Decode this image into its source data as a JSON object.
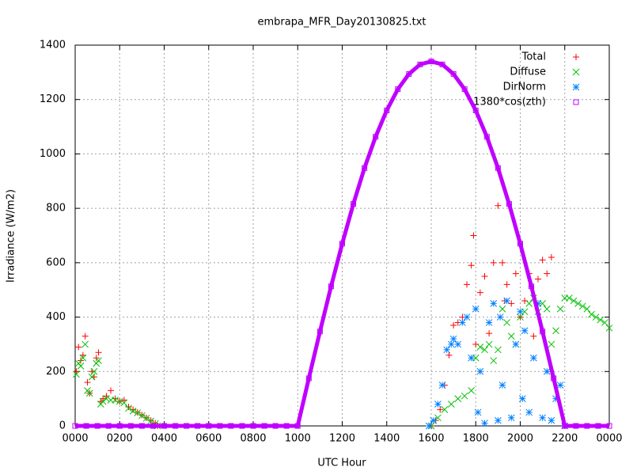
{
  "chart_data": {
    "type": "scatter",
    "title": "embrapa_MFR_Day20130825.txt",
    "x_label": "UTC Hour",
    "y_label": "Irradiance (W/m2)",
    "xlim": [
      0,
      24
    ],
    "ylim": [
      0,
      1400
    ],
    "xticks": [
      {
        "value": 0,
        "label": "0000"
      },
      {
        "value": 2,
        "label": "0200"
      },
      {
        "value": 4,
        "label": "0400"
      },
      {
        "value": 6,
        "label": "0600"
      },
      {
        "value": 8,
        "label": "0800"
      },
      {
        "value": 10,
        "label": "1000"
      },
      {
        "value": 12,
        "label": "1200"
      },
      {
        "value": 14,
        "label": "1400"
      },
      {
        "value": 16,
        "label": "1600"
      },
      {
        "value": 18,
        "label": "1800"
      },
      {
        "value": 20,
        "label": "2000"
      },
      {
        "value": 22,
        "label": "2200"
      },
      {
        "value": 24,
        "label": "0000"
      }
    ],
    "yticks": [
      0,
      200,
      400,
      600,
      800,
      1000,
      1200,
      1400
    ],
    "grid": true,
    "legend": "top-right",
    "series": [
      {
        "name": "Total",
        "color": "#ff0000",
        "marker": "plus",
        "x": [
          0.05,
          0.15,
          0.25,
          0.35,
          0.45,
          0.55,
          0.65,
          0.75,
          0.85,
          0.95,
          1.05,
          1.15,
          1.25,
          1.4,
          1.6,
          1.8,
          2.0,
          2.2,
          2.4,
          2.6,
          2.8,
          3.0,
          3.2,
          3.4,
          3.6,
          3.7,
          16.0,
          16.2,
          16.4,
          16.6,
          16.8,
          17.0,
          17.2,
          17.4,
          17.6,
          17.8,
          17.9,
          18.0,
          18.2,
          18.4,
          18.6,
          18.8,
          19.0,
          19.2,
          19.3,
          19.4,
          19.6,
          19.8,
          20.0,
          20.2,
          20.4,
          20.6,
          20.8,
          21.0,
          21.2,
          21.4
        ],
        "values": [
          200,
          290,
          240,
          260,
          330,
          160,
          120,
          200,
          180,
          250,
          270,
          90,
          100,
          110,
          130,
          100,
          90,
          95,
          70,
          60,
          50,
          40,
          30,
          20,
          10,
          0,
          0,
          20,
          60,
          150,
          260,
          370,
          380,
          400,
          520,
          590,
          700,
          300,
          490,
          550,
          340,
          600,
          810,
          600,
          460,
          520,
          450,
          560,
          400,
          460,
          560,
          330,
          540,
          610,
          560,
          620
        ]
      },
      {
        "name": "Diffuse",
        "color": "#00c000",
        "marker": "cross",
        "x": [
          0.05,
          0.15,
          0.25,
          0.35,
          0.45,
          0.55,
          0.65,
          0.75,
          0.85,
          0.95,
          1.05,
          1.15,
          1.25,
          1.4,
          1.6,
          1.8,
          2.0,
          2.2,
          2.4,
          2.6,
          2.8,
          3.0,
          3.2,
          3.4,
          3.6,
          3.7,
          16.0,
          16.3,
          16.6,
          16.9,
          17.2,
          17.5,
          17.8,
          18.0,
          18.2,
          18.4,
          18.6,
          18.8,
          19.0,
          19.2,
          19.4,
          19.6,
          19.8,
          20.0,
          20.2,
          20.4,
          20.6,
          20.8,
          21.0,
          21.2,
          21.4,
          21.6,
          21.8,
          22.0,
          22.2,
          22.4,
          22.6,
          22.8,
          23.0,
          23.2,
          23.4,
          23.6,
          23.8,
          24.0
        ],
        "values": [
          190,
          230,
          220,
          250,
          300,
          130,
          120,
          180,
          200,
          230,
          240,
          80,
          90,
          100,
          95,
          95,
          90,
          85,
          65,
          55,
          48,
          38,
          28,
          18,
          8,
          0,
          0,
          30,
          60,
          80,
          100,
          110,
          130,
          250,
          290,
          280,
          300,
          240,
          280,
          430,
          380,
          330,
          300,
          400,
          420,
          450,
          470,
          420,
          450,
          430,
          300,
          350,
          430,
          470,
          470,
          460,
          450,
          440,
          430,
          410,
          400,
          390,
          380,
          360
        ]
      },
      {
        "name": "DirNorm",
        "color": "#0080ff",
        "marker": "star",
        "x": [
          15.9,
          16.1,
          16.3,
          16.5,
          16.7,
          16.9,
          17.0,
          17.2,
          17.4,
          17.6,
          17.8,
          18.0,
          18.1,
          18.2,
          18.4,
          18.6,
          18.8,
          19.0,
          19.1,
          19.2,
          19.4,
          19.6,
          19.8,
          20.0,
          20.1,
          20.2,
          20.4,
          20.6,
          20.8,
          21.0,
          21.2,
          21.4,
          21.6,
          21.8,
          22.0
        ],
        "values": [
          0,
          20,
          80,
          150,
          280,
          300,
          320,
          300,
          380,
          400,
          250,
          430,
          50,
          200,
          10,
          380,
          450,
          20,
          400,
          150,
          460,
          30,
          300,
          420,
          100,
          350,
          50,
          250,
          450,
          30,
          200,
          20,
          100,
          150,
          0
        ]
      },
      {
        "name": "1380*cos(zth)",
        "color": "#c000ff",
        "marker": "square",
        "x": [
          0,
          0.5,
          1,
          1.5,
          2,
          2.5,
          3,
          3.5,
          4,
          4.5,
          5,
          5.5,
          6,
          6.5,
          7,
          7.5,
          8,
          8.5,
          9,
          9.5,
          10,
          10.5,
          11,
          11.5,
          12,
          12.5,
          13,
          13.5,
          14,
          14.5,
          15,
          15.5,
          16,
          16.5,
          17,
          17.5,
          18,
          18.5,
          19,
          19.5,
          20,
          20.5,
          21,
          21.5,
          22,
          22.5,
          23,
          23.5,
          24
        ],
        "values": [
          0,
          0,
          0,
          0,
          0,
          0,
          0,
          0,
          0,
          0,
          0,
          0,
          0,
          0,
          0,
          0,
          0,
          0,
          0,
          0,
          0,
          175,
          347,
          513,
          670,
          816,
          948,
          1063,
          1160,
          1238,
          1294,
          1329,
          1340,
          1329,
          1294,
          1238,
          1160,
          1063,
          948,
          816,
          670,
          513,
          347,
          175,
          0,
          0,
          0,
          0,
          0
        ]
      }
    ]
  }
}
